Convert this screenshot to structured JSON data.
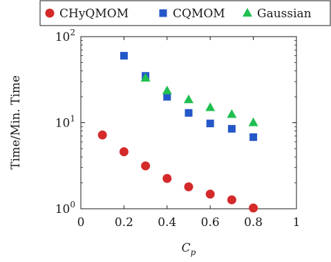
{
  "chart_data": {
    "type": "scatter",
    "xlabel_main": "C",
    "xlabel_sub": "p",
    "ylabel": "Time/Min. Time",
    "xlim": [
      0,
      1
    ],
    "ylim": [
      1,
      100
    ],
    "yscale": "log",
    "grid": false,
    "legend_position": "top (above plot)",
    "x_ticks": [
      0,
      0.2,
      0.4,
      0.6,
      0.8,
      1
    ],
    "x_tick_labels": [
      "0",
      "0.2",
      "0.4",
      "0.6",
      "0.8",
      "1"
    ],
    "y_ticks": [
      1,
      10,
      100
    ],
    "y_tick_labels": [
      {
        "base": "10",
        "exp": "0"
      },
      {
        "base": "10",
        "exp": "1"
      },
      {
        "base": "10",
        "exp": "2"
      }
    ],
    "series": [
      {
        "name": "CHyQMOM",
        "marker": "circle",
        "color": "#d42a2a",
        "x": [
          0.1,
          0.2,
          0.3,
          0.4,
          0.5,
          0.6,
          0.7,
          0.8
        ],
        "y": [
          7.2,
          4.6,
          3.15,
          2.25,
          1.8,
          1.48,
          1.27,
          1.02
        ]
      },
      {
        "name": "CQMOM",
        "marker": "square",
        "color": "#2457c9",
        "x": [
          0.2,
          0.3,
          0.4,
          0.5,
          0.6,
          0.7,
          0.8
        ],
        "y": [
          60,
          35,
          20,
          13,
          9.8,
          8.5,
          6.8
        ]
      },
      {
        "name": "Gaussian",
        "marker": "triangle",
        "color": "#1fbf4f",
        "x": [
          0.3,
          0.4,
          0.5,
          0.6,
          0.7,
          0.8
        ],
        "y": [
          33,
          23.5,
          18.5,
          15,
          12.5,
          10
        ]
      }
    ]
  }
}
